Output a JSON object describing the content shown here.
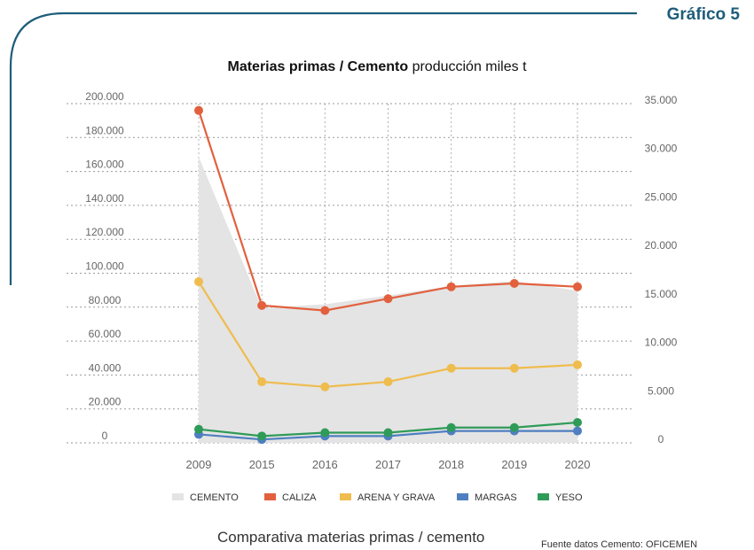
{
  "header": {
    "badge": "Gráfico 5"
  },
  "title": {
    "bold": "Materias primas / Cemento",
    "rest": "producción miles t"
  },
  "caption": "Comparativa materias primas / cemento",
  "source": "Fuente datos Cemento: OFICEMEN",
  "colors": {
    "frame": "#1f5d7a",
    "badge": "#1f5d7a"
  },
  "chart_data": {
    "type": "line",
    "categories": [
      "2009",
      "2015",
      "2016",
      "2017",
      "2018",
      "2019",
      "2020"
    ],
    "y_left": {
      "ticks": [
        "200.000",
        "180.000",
        "160.000",
        "140.000",
        "120.000",
        "100.000",
        "80.000",
        "60.000",
        "40.000",
        "20.000",
        "0"
      ],
      "range": [
        0,
        200000
      ]
    },
    "y_right": {
      "ticks": [
        "35.000",
        "30.000",
        "25.000",
        "20.000",
        "15.000",
        "10.000",
        "5.000",
        "0"
      ],
      "range": [
        0,
        35000
      ]
    },
    "area": {
      "name": "CEMENTO",
      "axis": "right",
      "color": "#e4e4e4",
      "values": [
        29500,
        13900,
        14300,
        15200,
        16200,
        16700,
        15700
      ]
    },
    "series": [
      {
        "name": "CALIZA",
        "color": "#e2603e",
        "values": [
          196000,
          81000,
          78000,
          85000,
          92000,
          94000,
          92000
        ]
      },
      {
        "name": "ARENA Y GRAVA",
        "color": "#efbc4e",
        "values": [
          95000,
          36000,
          33000,
          36000,
          44000,
          44000,
          46000
        ]
      },
      {
        "name": "MARGAS",
        "color": "#4f7fc0",
        "values": [
          5000,
          2000,
          4000,
          4000,
          7000,
          7000,
          7000
        ]
      },
      {
        "name": "YESO",
        "color": "#2f9b58",
        "values": [
          8000,
          4000,
          6000,
          6000,
          9000,
          9000,
          12000
        ]
      }
    ],
    "legend": [
      "CEMENTO",
      "CALIZA",
      "ARENA Y GRAVA",
      "MARGAS",
      "YESO"
    ],
    "grid": true,
    "legend_position": "bottom"
  }
}
